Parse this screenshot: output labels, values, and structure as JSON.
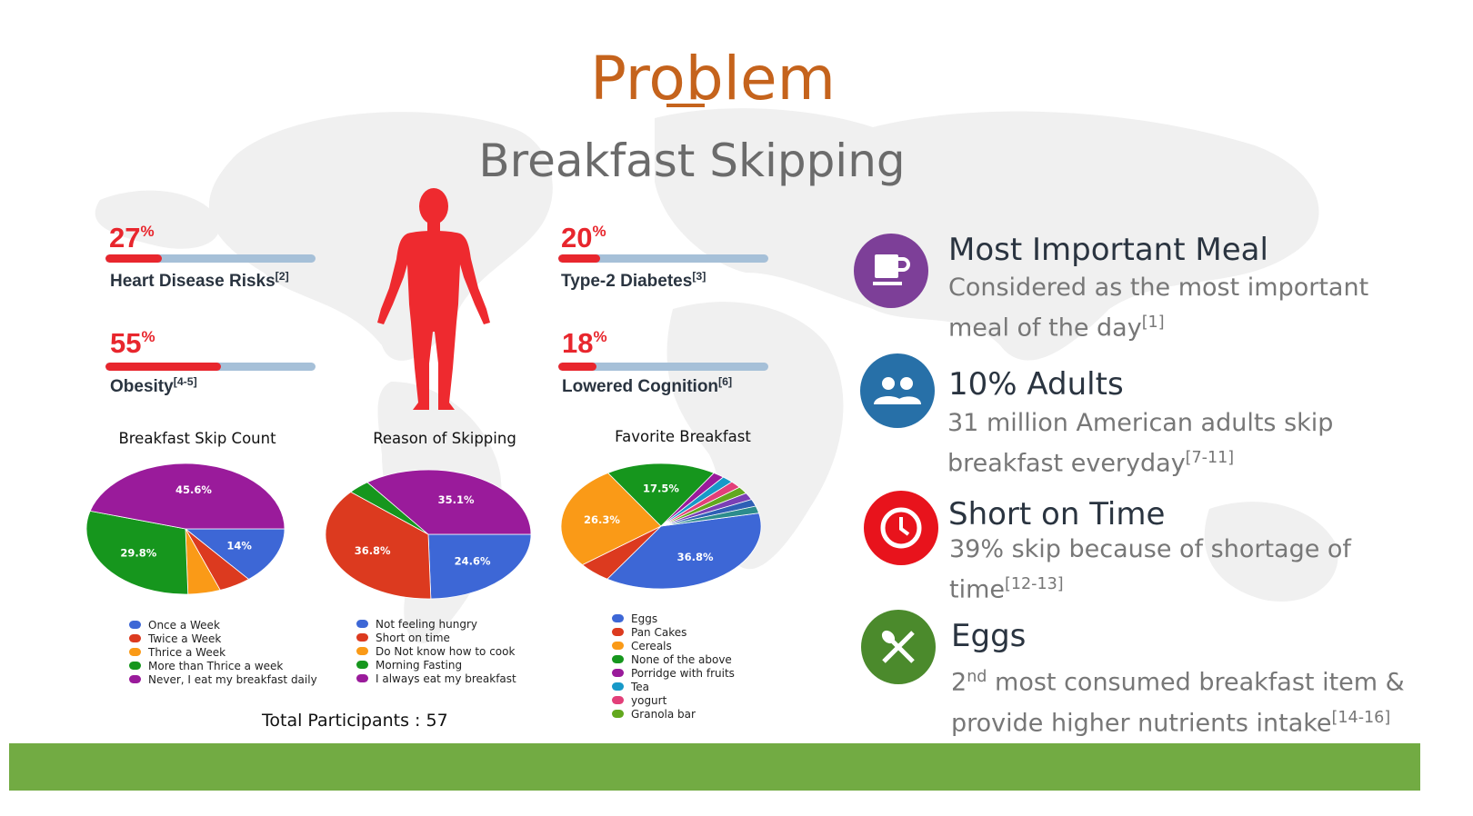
{
  "title": "Problem",
  "subtitle": "Breakfast Skipping",
  "stats": [
    {
      "value": 27,
      "percent_sign": "%",
      "label": "Heart Disease Risks",
      "ref": "[2]"
    },
    {
      "value": 55,
      "percent_sign": "%",
      "label": "Obesity",
      "ref": "[4-5]"
    },
    {
      "value": 20,
      "percent_sign": "%",
      "label": "Type-2 Diabetes",
      "ref": "[3]"
    },
    {
      "value": 18,
      "percent_sign": "%",
      "label": "Lowered Cognition",
      "ref": "[6]"
    }
  ],
  "features": [
    {
      "icon": "coffee-cup-icon",
      "color": "#7d3f98",
      "title": "Most Important Meal",
      "desc_a": "Considered as the most important",
      "desc_b": "meal of the day",
      "ref": "[1]"
    },
    {
      "icon": "people-icon",
      "color": "#2770a8",
      "title": "10% Adults",
      "desc_a": "31 million American adults skip",
      "desc_b": "breakfast everyday",
      "ref": "[7-11]"
    },
    {
      "icon": "clock-icon",
      "color": "#e8131c",
      "title": "Short on Time",
      "desc_a": "39% skip because of shortage of",
      "desc_b": "time",
      "ref": "[12-13]"
    },
    {
      "icon": "fork-spoon-icon",
      "color": "#4b8a2c",
      "title": "Eggs",
      "desc_ord": "2",
      "desc_ord_sup": "nd",
      "desc_a": " most consumed breakfast item &",
      "desc_b": "provide higher nutrients intake",
      "ref": "[14-16]"
    }
  ],
  "participants": "Total Participants : 57",
  "colors": {
    "title": "#c5631c",
    "stat_red": "#e8262d",
    "track": "#a6c0d8",
    "footer": "#72ab43",
    "blue": "#3d67d6",
    "red": "#dc3a1f",
    "orange": "#fa9a17",
    "green": "#16961d",
    "purple": "#9a1b9b",
    "teal": "#1799c8",
    "pink": "#e23f79",
    "lime": "#62a81e"
  },
  "chart_data": [
    {
      "type": "pie",
      "title": "Breakfast Skip Count",
      "slices": [
        {
          "label": "Once a Week",
          "value": 14.0,
          "color": "#3d67d6",
          "shown": "14%"
        },
        {
          "label": "Twice a Week",
          "value": 5.3,
          "color": "#dc3a1f",
          "shown": ""
        },
        {
          "label": "Thrice a Week",
          "value": 5.3,
          "color": "#fa9a17",
          "shown": ""
        },
        {
          "label": "More than Thrice a week",
          "value": 29.8,
          "color": "#16961d",
          "shown": "29.8%"
        },
        {
          "label": "Never, I eat my breakfast daily",
          "value": 45.6,
          "color": "#9a1b9b",
          "shown": "45.6%"
        }
      ]
    },
    {
      "type": "pie",
      "title": "Reason of  Skipping",
      "slices": [
        {
          "label": "Not feeling hungry",
          "value": 24.6,
          "color": "#3d67d6",
          "shown": "24.6%"
        },
        {
          "label": "Short on time",
          "value": 36.8,
          "color": "#dc3a1f",
          "shown": "36.8%"
        },
        {
          "label": "Do Not know how to cook",
          "value": 0,
          "color": "#fa9a17",
          "shown": ""
        },
        {
          "label": "Morning Fasting",
          "value": 3.5,
          "color": "#16961d",
          "shown": ""
        },
        {
          "label": "I always eat my breakfast",
          "value": 35.1,
          "color": "#9a1b9b",
          "shown": "35.1%"
        }
      ]
    },
    {
      "type": "pie",
      "title": "Favorite Breakfast",
      "slices": [
        {
          "label": "Eggs",
          "value": 36.8,
          "color": "#3d67d6",
          "shown": "36.8%"
        },
        {
          "label": "Pan Cakes",
          "value": 5.3,
          "color": "#dc3a1f",
          "shown": ""
        },
        {
          "label": "Cereals",
          "value": 26.3,
          "color": "#fa9a17",
          "shown": "26.3%"
        },
        {
          "label": "None of the above",
          "value": 17.5,
          "color": "#16961d",
          "shown": "17.5%"
        },
        {
          "label": "Porridge with fruits",
          "value": 1.8,
          "color": "#9a1b9b",
          "shown": ""
        },
        {
          "label": "Tea",
          "value": 1.8,
          "color": "#1799c8",
          "shown": ""
        },
        {
          "label": "yogurt",
          "value": 1.8,
          "color": "#e23f79",
          "shown": ""
        },
        {
          "label": "Granola bar",
          "value": 1.8,
          "color": "#62a81e",
          "shown": ""
        },
        {
          "label": "",
          "value": 1.8,
          "color": "#7b3fb5",
          "shown": ""
        },
        {
          "label": "",
          "value": 1.8,
          "color": "#2f5fb5",
          "shown": ""
        },
        {
          "label": "",
          "value": 1.8,
          "color": "#2c8c8c",
          "shown": ""
        }
      ]
    }
  ]
}
